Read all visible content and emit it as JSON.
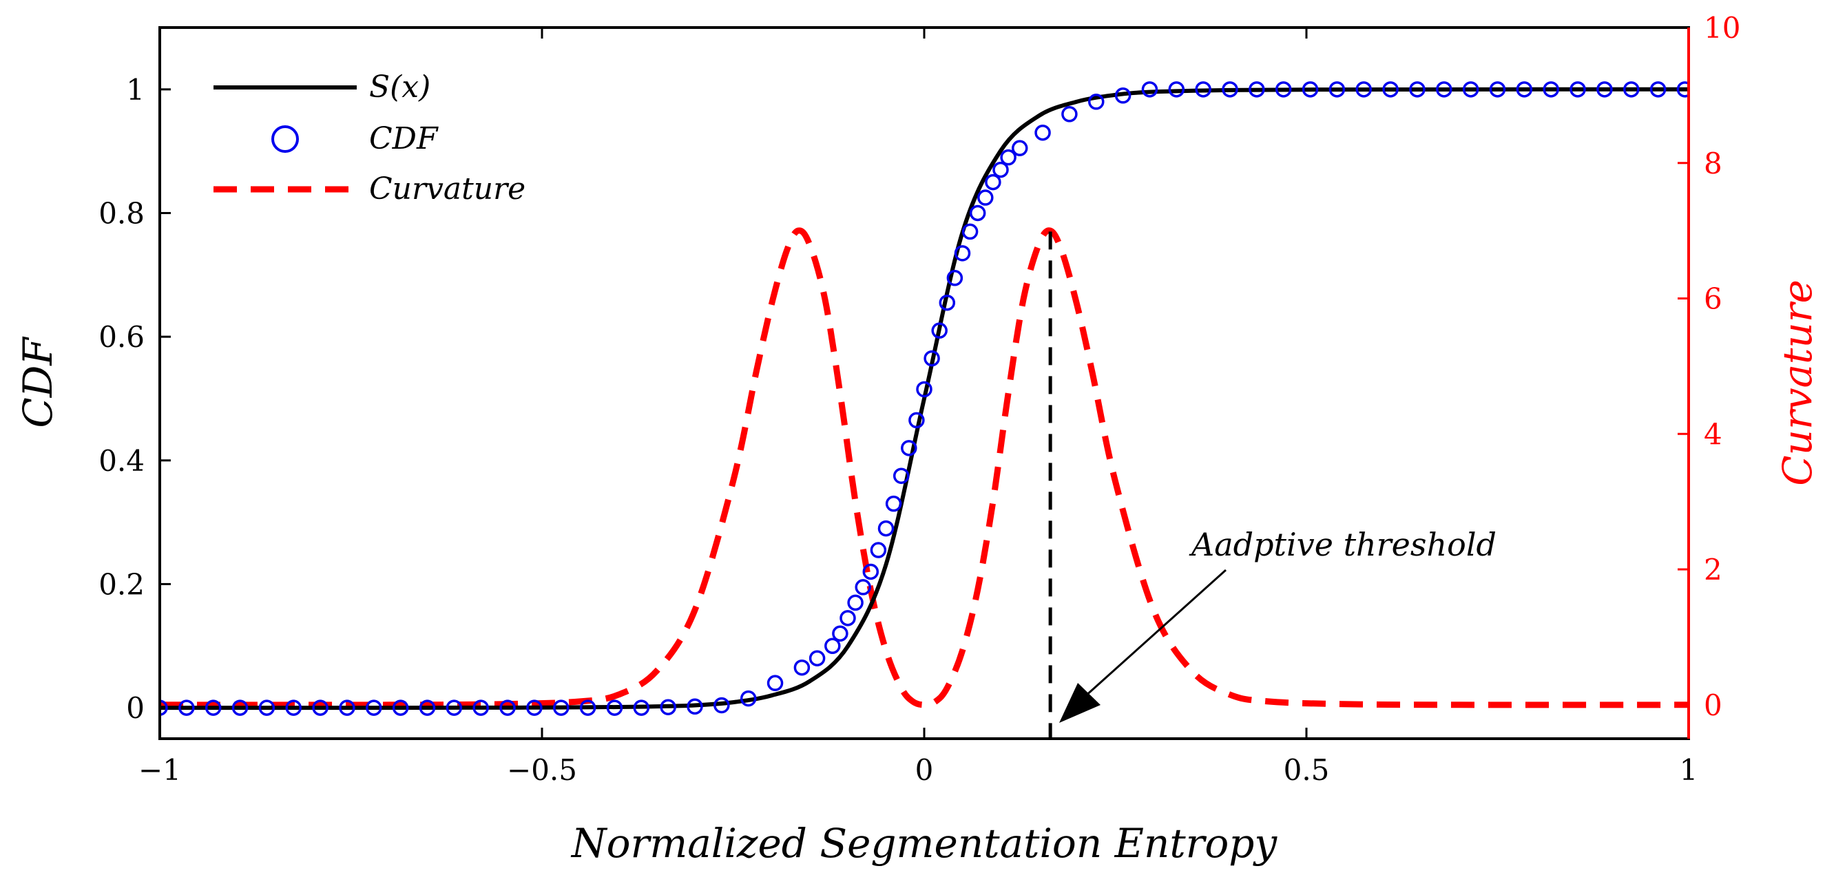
{
  "chart_data": {
    "type": "line",
    "xlabel": "Normalized Segmentation Entropy",
    "ylabel_left": "CDF",
    "ylabel_right": "Curvature",
    "xlim": [
      -1,
      1
    ],
    "ylim_left": [
      -0.05,
      1.1
    ],
    "ylim_right": [
      -0.5,
      10
    ],
    "xticks": [
      -1,
      -0.5,
      0,
      0.5,
      1
    ],
    "xtick_labels": [
      "−1",
      "−0.5",
      "0",
      "0.5",
      "1"
    ],
    "yticks_left": [
      0,
      0.2,
      0.4,
      0.6,
      0.8,
      1
    ],
    "ytick_labels_left": [
      "0",
      "0.2",
      "0.4",
      "0.6",
      "0.8",
      "1"
    ],
    "yticks_right": [
      0,
      2,
      4,
      6,
      8,
      10
    ],
    "ytick_labels_right": [
      "0",
      "2",
      "4",
      "6",
      "8",
      "10"
    ],
    "legend": {
      "position": "top-left",
      "entries": [
        {
          "label": "S(x)",
          "style": "solid",
          "color": "#000000"
        },
        {
          "label": "CDF",
          "style": "circle",
          "color": "#0000ee"
        },
        {
          "label": "Curvature",
          "style": "dashed",
          "color": "#ff0000"
        }
      ]
    },
    "series": [
      {
        "name": "S(x)",
        "axis": "left",
        "style": "solid",
        "color": "#000000",
        "x": [
          -1,
          -0.8,
          -0.6,
          -0.5,
          -0.4,
          -0.35,
          -0.3,
          -0.25,
          -0.2,
          -0.15,
          -0.1,
          -0.05,
          0,
          0.05,
          0.1,
          0.15,
          0.2,
          0.25,
          0.3,
          0.4,
          0.5,
          0.6,
          0.8,
          1
        ],
        "values": [
          0,
          0,
          0.0002,
          0.0004,
          0.0012,
          0.0022,
          0.004,
          0.0089,
          0.0198,
          0.0427,
          0.0993,
          0.2315,
          0.5,
          0.7685,
          0.9007,
          0.9573,
          0.9802,
          0.9911,
          0.996,
          0.9988,
          0.9996,
          0.9998,
          1,
          1
        ]
      },
      {
        "name": "CDF",
        "axis": "left",
        "style": "circle",
        "color": "#0000ee",
        "x": [
          -1,
          -0.965,
          -0.93,
          -0.895,
          -0.86,
          -0.825,
          -0.79,
          -0.755,
          -0.72,
          -0.685,
          -0.65,
          -0.615,
          -0.58,
          -0.545,
          -0.51,
          -0.475,
          -0.44,
          -0.405,
          -0.37,
          -0.335,
          -0.3,
          -0.265,
          -0.23,
          -0.195,
          -0.16,
          -0.14,
          -0.12,
          -0.11,
          -0.1,
          -0.09,
          -0.08,
          -0.07,
          -0.06,
          -0.05,
          -0.04,
          -0.03,
          -0.02,
          -0.01,
          0,
          0.01,
          0.02,
          0.03,
          0.04,
          0.05,
          0.06,
          0.07,
          0.08,
          0.09,
          0.1,
          0.11,
          0.125,
          0.155,
          0.19,
          0.225,
          0.26,
          0.295,
          0.33,
          0.365,
          0.4,
          0.435,
          0.47,
          0.505,
          0.54,
          0.575,
          0.61,
          0.645,
          0.68,
          0.715,
          0.75,
          0.785,
          0.82,
          0.855,
          0.89,
          0.925,
          0.96,
          0.995
        ],
        "values": [
          0,
          0,
          0,
          0,
          0,
          0,
          0,
          0,
          0,
          0,
          0,
          0,
          0,
          0,
          0,
          0,
          0,
          0,
          0,
          0.001,
          0.002,
          0.004,
          0.015,
          0.04,
          0.065,
          0.08,
          0.1,
          0.12,
          0.145,
          0.17,
          0.195,
          0.22,
          0.255,
          0.29,
          0.33,
          0.375,
          0.42,
          0.465,
          0.515,
          0.565,
          0.61,
          0.655,
          0.695,
          0.735,
          0.77,
          0.8,
          0.825,
          0.85,
          0.87,
          0.89,
          0.905,
          0.93,
          0.96,
          0.98,
          0.99,
          1,
          1,
          1,
          1,
          1,
          1,
          1,
          1,
          1,
          1,
          1,
          1,
          1,
          1,
          1,
          1,
          1,
          1,
          1,
          1,
          1
        ]
      },
      {
        "name": "Curvature",
        "axis": "right",
        "style": "dashed",
        "color": "#ff0000",
        "x": [
          -1,
          -0.7,
          -0.55,
          -0.45,
          -0.4,
          -0.35,
          -0.3,
          -0.25,
          -0.22,
          -0.2,
          -0.18,
          -0.165,
          -0.15,
          -0.13,
          -0.11,
          -0.09,
          -0.07,
          -0.05,
          -0.03,
          -0.015,
          0,
          0.015,
          0.03,
          0.05,
          0.07,
          0.09,
          0.11,
          0.13,
          0.15,
          0.165,
          0.18,
          0.2,
          0.22,
          0.25,
          0.3,
          0.35,
          0.4,
          0.45,
          0.55,
          0.7,
          1
        ],
        "values": [
          0,
          0,
          0.01,
          0.05,
          0.15,
          0.5,
          1.4,
          3.3,
          4.9,
          5.9,
          6.7,
          7.0,
          6.8,
          6.0,
          4.6,
          3.0,
          1.7,
          0.8,
          0.25,
          0.05,
          0,
          0.05,
          0.25,
          0.8,
          1.7,
          3.0,
          4.6,
          6.0,
          6.8,
          7.0,
          6.7,
          5.9,
          4.9,
          3.3,
          1.4,
          0.5,
          0.15,
          0.05,
          0.01,
          0,
          0
        ]
      }
    ],
    "annotation": {
      "text": "Aadptive threshold",
      "threshold_x": 0.165,
      "threshold_top_left_value": 0.77
    }
  }
}
